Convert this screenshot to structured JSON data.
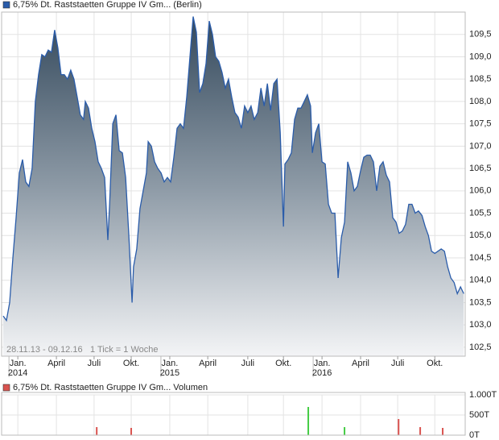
{
  "chart_data": [
    {
      "type": "area",
      "series": [
        {
          "name": "6,75% Dt. Raststaetten Gruppe IV Gm... (Berlin)",
          "color": "#2a5caa",
          "values": [
            103.2,
            103.1,
            103.5,
            104.5,
            105.4,
            106.4,
            106.7,
            106.2,
            106.1,
            106.5,
            108.0,
            108.6,
            109.05,
            109.0,
            109.15,
            109.1,
            109.6,
            109.2,
            108.6,
            108.6,
            108.5,
            108.7,
            108.5,
            108.1,
            107.7,
            107.6,
            108.0,
            107.85,
            107.4,
            107.1,
            106.65,
            106.5,
            106.3,
            104.9,
            105.7,
            107.5,
            107.7,
            106.9,
            106.85,
            106.3,
            105.0,
            103.5,
            104.3,
            104.7,
            105.6,
            106.0,
            106.4,
            107.1,
            107.0,
            106.65,
            106.5,
            106.4,
            106.2,
            106.3,
            106.2,
            106.75,
            107.4,
            107.5,
            107.4,
            108.1,
            109.0,
            109.9,
            109.55,
            108.2,
            108.4,
            108.85,
            109.8,
            109.5,
            109.0,
            108.9,
            108.65,
            108.3,
            108.5,
            108.1,
            107.75,
            107.65,
            107.4,
            107.9,
            107.75,
            107.9,
            107.6,
            107.75,
            108.3,
            107.9,
            108.4,
            107.8,
            108.4,
            108.5,
            107.3,
            105.2,
            106.6,
            106.7,
            106.85,
            107.6,
            107.85,
            107.85,
            108.0,
            108.15,
            107.9,
            106.85,
            107.3,
            107.5,
            106.65,
            106.6,
            105.7,
            105.5,
            105.5,
            104.05,
            104.95,
            105.3,
            106.65,
            106.4,
            106.0,
            106.1,
            106.45,
            106.75,
            106.8,
            106.8,
            106.65,
            106.0,
            106.55,
            106.65,
            106.35,
            106.2,
            105.4,
            105.3,
            105.05,
            105.1,
            105.25,
            105.7,
            105.7,
            105.5,
            105.55,
            105.45,
            105.2,
            105.0,
            104.65,
            104.6,
            104.65,
            104.7,
            104.65,
            104.3,
            104.05,
            103.95,
            103.7,
            103.85,
            103.7
          ]
        }
      ],
      "x": [
        0,
        1.1,
        2.2,
        3.3,
        4.4,
        5.5,
        6.6,
        7.7,
        8.8,
        9.9,
        11.0,
        12.1,
        13.2,
        14.3,
        15.4,
        16.5,
        17.6,
        18.7,
        19.8,
        20.9,
        22.0,
        23.1,
        24.2,
        25.3,
        26.4,
        27.5,
        28.1,
        29.2,
        30.3,
        31.4,
        32.5,
        33.6,
        34.7,
        35.8,
        36.4,
        37.5,
        38.6,
        39.7,
        40.8,
        41.9,
        43.0,
        44.1,
        44.6,
        45.7,
        46.8,
        47.9,
        49.0,
        49.6,
        50.7,
        51.8,
        52.9,
        54.0,
        55.1,
        56.2,
        57.3,
        58.4,
        59.5,
        60.6,
        61.7,
        62.8,
        63.9,
        65.0,
        66.1,
        67.2,
        68.3,
        69.4,
        70.5,
        71.6,
        72.7,
        73.8,
        74.9,
        76.0,
        77.1,
        78.2,
        79.3,
        80.4,
        81.5,
        82.6,
        83.7,
        84.8,
        85.9,
        87.1,
        88.2,
        89.3,
        90.4,
        91.5,
        92.6,
        93.7,
        94.8,
        95.9,
        96.4,
        97.5,
        98.6,
        99.7,
        100.8,
        101.9,
        103.0,
        104.1,
        105.2,
        105.8,
        106.9,
        108.0,
        109.1,
        110.2,
        111.3,
        112.4,
        113.5,
        114.6,
        115.7,
        116.8,
        117.9,
        119.0,
        120.1,
        121.2,
        122.3,
        123.4,
        124.5,
        125.6,
        126.7,
        127.8,
        128.9,
        130.0,
        131.1,
        132.2,
        133.3,
        134.4,
        135.5,
        136.6,
        137.7,
        138.8,
        139.9,
        141.0,
        142.1,
        143.3,
        144.4,
        145.5,
        146.6,
        147.7,
        148.8,
        149.9,
        151.0,
        152.1,
        153.2,
        154.3,
        155.4,
        156.5,
        157.6
      ],
      "xlim": [
        -0.55,
        158.1
      ],
      "xticks": [
        {
          "value": 5.0,
          "label": "Jan."
        },
        {
          "value": 18.2,
          "label": "April"
        },
        {
          "value": 31.1,
          "label": "Juli"
        },
        {
          "value": 43.8,
          "label": "Okt."
        },
        {
          "value": 57.0,
          "label": "Jan."
        },
        {
          "value": 70.0,
          "label": "April"
        },
        {
          "value": 83.7,
          "label": "Juli"
        },
        {
          "value": 95.9,
          "label": "Okt."
        },
        {
          "value": 109.1,
          "label": "Jan."
        },
        {
          "value": 122.3,
          "label": "April"
        },
        {
          "value": 135.0,
          "label": "Juli"
        },
        {
          "value": 147.7,
          "label": "Okt."
        }
      ],
      "year_labels": [
        {
          "value": 5.0,
          "label": "2014"
        },
        {
          "value": 57.0,
          "label": "2015"
        },
        {
          "value": 109.1,
          "label": "2016"
        }
      ],
      "ylim": [
        102.3,
        110.0
      ],
      "yticks": [
        {
          "value": 102.5,
          "label": "102,5"
        },
        {
          "value": 103.0,
          "label": "103,0"
        },
        {
          "value": 103.5,
          "label": "103,5"
        },
        {
          "value": 104.0,
          "label": "104,0"
        },
        {
          "value": 104.5,
          "label": "104,5"
        },
        {
          "value": 105.0,
          "label": "105,0"
        },
        {
          "value": 105.5,
          "label": "105,5"
        },
        {
          "value": 106.0,
          "label": "106,0"
        },
        {
          "value": 106.5,
          "label": "106,5"
        },
        {
          "value": 107.0,
          "label": "107,0"
        },
        {
          "value": 107.5,
          "label": "107,5"
        },
        {
          "value": 108.0,
          "label": "108,0"
        },
        {
          "value": 108.5,
          "label": "108,5"
        },
        {
          "value": 109.0,
          "label": "109,0"
        },
        {
          "value": 109.5,
          "label": "109,5"
        }
      ],
      "range_label": "28.11.13 - 09.12.16",
      "tick_note": "1 Tick = 1 Woche",
      "grid": true
    },
    {
      "type": "bar",
      "series": [
        {
          "name": "6,75% Dt. Raststaetten Gruppe IV Gm... Volumen",
          "color": "#d9534f",
          "values": [
            200,
            180,
            700,
            200,
            400,
            200,
            180
          ]
        }
      ],
      "bar_colors": [
        "#d9534f",
        "#d9534f",
        "#44cc44",
        "#44cc44",
        "#d9534f",
        "#d9534f",
        "#d9534f"
      ],
      "x": [
        32.0,
        43.8,
        104.4,
        116.8,
        135.3,
        142.7,
        150.4
      ],
      "xlim": [
        -0.55,
        158.1
      ],
      "ylim": [
        0,
        1000
      ],
      "yticks": [
        {
          "value": 0,
          "label": "0T"
        },
        {
          "value": 500,
          "label": "500T"
        },
        {
          "value": 1000,
          "label": "1.000T"
        }
      ],
      "grid": true
    }
  ]
}
